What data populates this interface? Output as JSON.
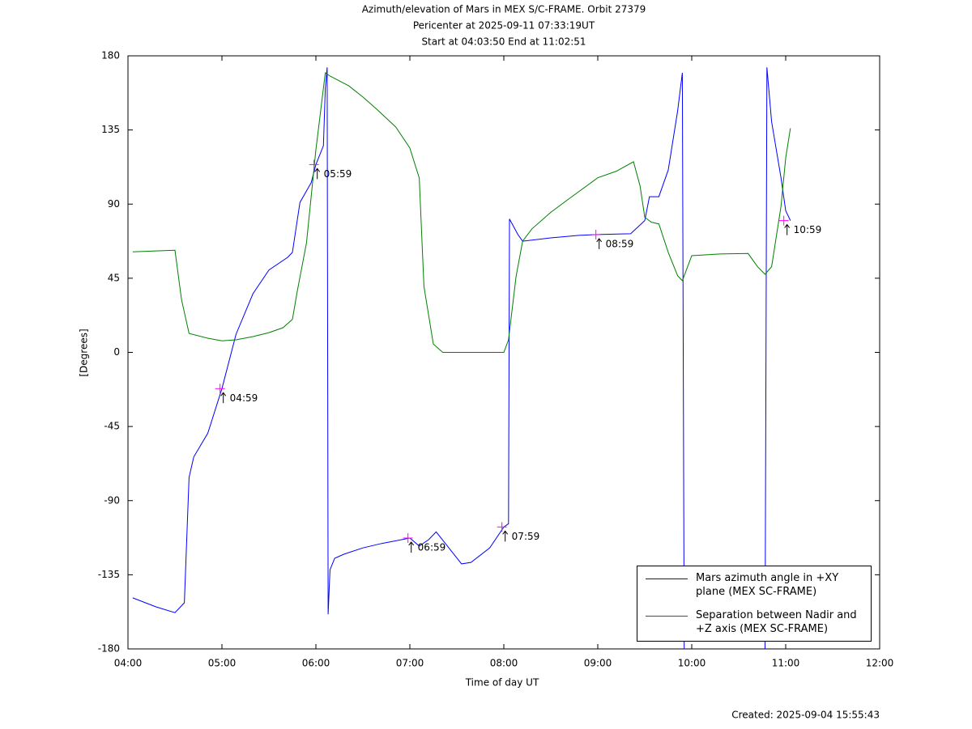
{
  "chart_data": {
    "type": "line",
    "title": "Azimuth/elevation of Mars in MEX S/C-FRAME.  Orbit 27379",
    "subtitles": [
      "Pericenter at 2025-09-11 07:33:19UT",
      "Start at 04:03:50 End at 11:02:51"
    ],
    "xlabel": "Time of day UT",
    "ylabel": "[Degrees]",
    "footer": "Created: 2025-09-04 15:55:43",
    "xlim": [
      4,
      12
    ],
    "xticks": [
      {
        "value": 4,
        "label": "04:00"
      },
      {
        "value": 5,
        "label": "05:00"
      },
      {
        "value": 6,
        "label": "06:00"
      },
      {
        "value": 7,
        "label": "07:00"
      },
      {
        "value": 8,
        "label": "08:00"
      },
      {
        "value": 9,
        "label": "09:00"
      },
      {
        "value": 10,
        "label": "10:00"
      },
      {
        "value": 11,
        "label": "11:00"
      },
      {
        "value": 12,
        "label": "12:00"
      }
    ],
    "ylim": [
      -180,
      180
    ],
    "yticks": [
      180,
      135,
      90,
      45,
      0,
      -45,
      -90,
      -135,
      -180
    ],
    "legend": "lower right",
    "series": [
      {
        "name": "Mars azimuth angle in +XY plane (MEX SC-FRAME)",
        "color": "#0000ff",
        "x": [
          4.05,
          4.3,
          4.5,
          4.6,
          4.65,
          4.7,
          4.85,
          5.0,
          5.15,
          5.33,
          5.5,
          5.7,
          5.75,
          5.83,
          5.95,
          6.0,
          6.08,
          6.1,
          6.12,
          6.13,
          6.15,
          6.2,
          6.3,
          6.5,
          6.7,
          7.0,
          7.1,
          7.2,
          7.28,
          7.4,
          7.55,
          7.65,
          7.85,
          8.0,
          8.05,
          8.06,
          8.15,
          8.2,
          8.5,
          8.8,
          9.0,
          9.35,
          9.5,
          9.55,
          9.65,
          9.75,
          9.85,
          9.9,
          9.92,
          9.95,
          10.78,
          10.8,
          10.85,
          10.95,
          11.0,
          11.05
        ],
        "values": [
          -149,
          -154.5,
          -158,
          -152,
          -76,
          -63.5,
          -49,
          -22,
          11,
          35.6,
          50,
          57.7,
          60.7,
          91,
          103,
          114,
          125.5,
          160,
          173,
          -159,
          -132,
          -125,
          -122.5,
          -118.7,
          -116,
          -112.7,
          -117.6,
          -113.7,
          -109,
          -117.6,
          -128.4,
          -127.5,
          -118.7,
          -106,
          -104,
          81,
          71.5,
          67.5,
          69.5,
          71,
          71.5,
          72,
          80,
          94.5,
          94.5,
          110.7,
          146.6,
          169.7,
          -180,
          null,
          -180,
          173,
          140,
          106,
          86,
          80
        ]
      },
      {
        "name": "Separation between Nadir and +Z axis (MEX SC-FRAME)",
        "color": "#008000",
        "x": [
          4.05,
          4.3,
          4.5,
          4.57,
          4.65,
          4.85,
          5.0,
          5.15,
          5.33,
          5.5,
          5.65,
          5.75,
          5.8,
          5.9,
          6.0,
          6.1,
          6.15,
          6.35,
          6.5,
          6.65,
          6.85,
          7.0,
          7.1,
          7.15,
          7.25,
          7.35,
          7.55,
          8.0,
          8.05,
          8.13,
          8.2,
          8.3,
          8.5,
          8.7,
          9.0,
          9.2,
          9.38,
          9.45,
          9.5,
          9.57,
          9.65,
          9.75,
          9.85,
          9.9,
          10.0,
          10.3,
          10.6,
          10.7,
          10.78,
          10.85,
          10.95,
          11.0,
          11.05
        ],
        "values": [
          61,
          61.6,
          62,
          32,
          11.5,
          8.6,
          7,
          7.6,
          9.6,
          12,
          15,
          20,
          36.6,
          66.5,
          123,
          169.7,
          167.7,
          161.8,
          155,
          147.5,
          136.8,
          124,
          105.8,
          40,
          5,
          0,
          0,
          0,
          7.6,
          46,
          67.5,
          75,
          85,
          93.5,
          106,
          110,
          115.7,
          101,
          82,
          79,
          78,
          60.7,
          46.5,
          43.5,
          58.7,
          59.7,
          60,
          52,
          47.4,
          52,
          88.6,
          118,
          136
        ]
      }
    ],
    "annotations": [
      {
        "text": "04:59",
        "x": 4.98,
        "y": -22
      },
      {
        "text": "05:59",
        "x": 5.98,
        "y": 114
      },
      {
        "text": "06:59",
        "x": 6.98,
        "y": -112.7
      },
      {
        "text": "07:59",
        "x": 7.98,
        "y": -106
      },
      {
        "text": "08:59",
        "x": 8.98,
        "y": 71.5
      },
      {
        "text": "10:59",
        "x": 10.98,
        "y": 80
      }
    ]
  }
}
